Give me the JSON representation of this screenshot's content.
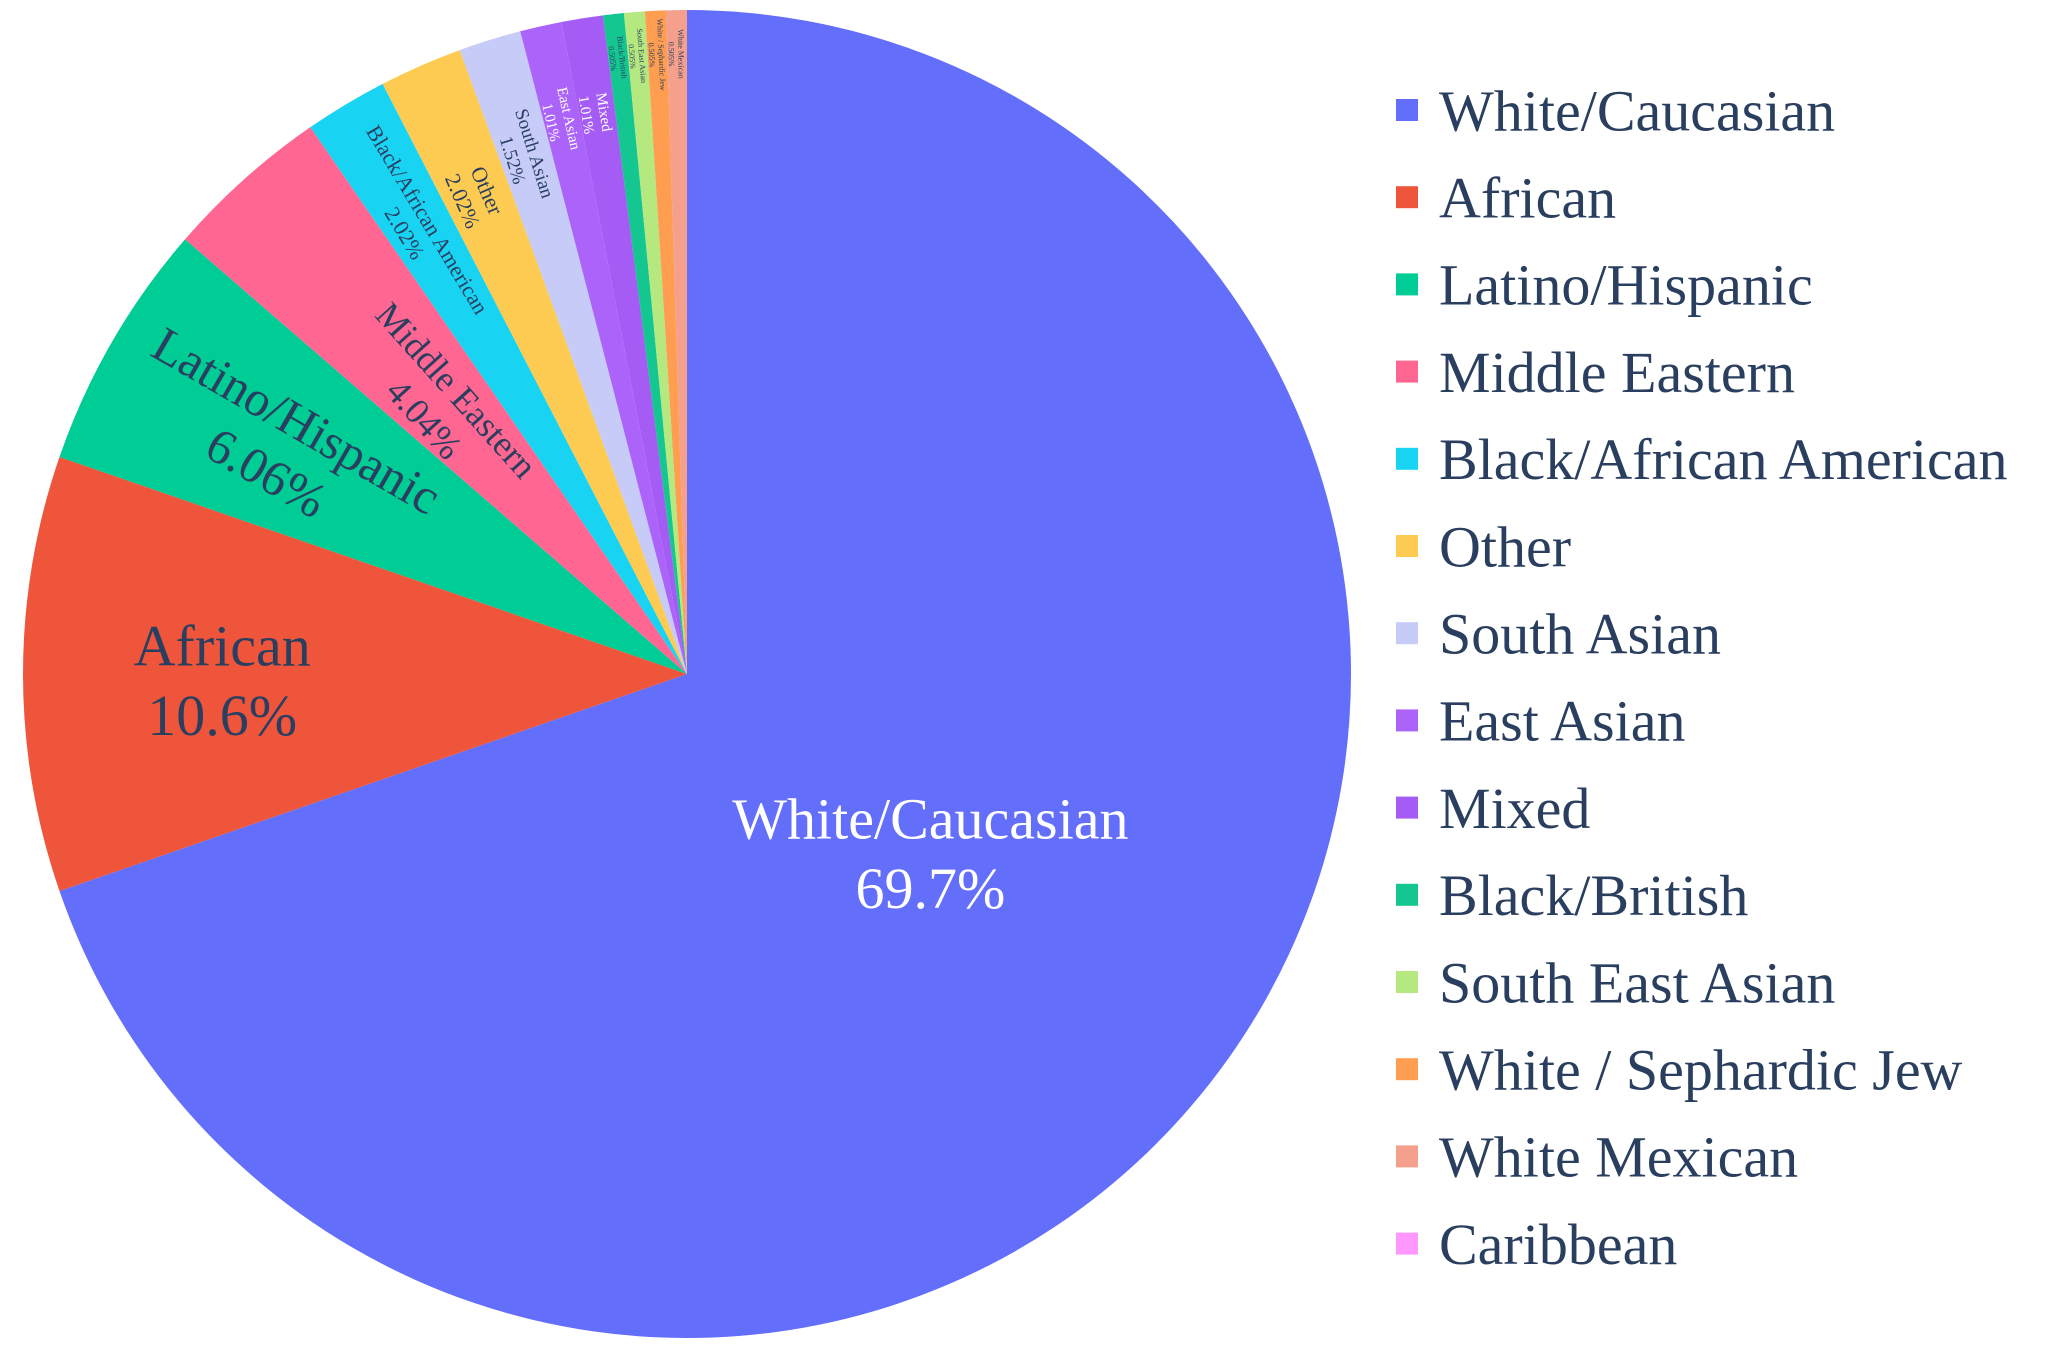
{
  "chart_data": {
    "type": "pie",
    "title": "",
    "labels": [
      "White/Caucasian",
      "African",
      "Latino/Hispanic",
      "Middle Eastern",
      "Black/African American",
      "Other",
      "South Asian",
      "East Asian",
      "Mixed",
      "Black/British",
      "South East Asian",
      "White / Sephardic Jew",
      "White Mexican",
      "Caribbean"
    ],
    "values": [
      69.7,
      10.6,
      6.06,
      4.04,
      2.02,
      2.02,
      1.52,
      1.01,
      1.01,
      0.505,
      0.505,
      0.505,
      0.505,
      0.0
    ],
    "percent_labels": [
      "69.7%",
      "10.6%",
      "6.06%",
      "4.04%",
      "2.02%",
      "2.02%",
      "1.52%",
      "1.01%",
      "1.01%",
      "0.505%",
      "0.505%",
      "0.505%",
      "0.505%",
      ""
    ],
    "colors": [
      "#636EFA",
      "#EF553B",
      "#00CC96",
      "#FF6692",
      "#19D3F3",
      "#FECB52",
      "#C6CBF8",
      "#AB63FA",
      "#A45CF5",
      "#14C690",
      "#B6E880",
      "#FF9D50",
      "#F5A08C",
      "#FF97FF"
    ],
    "text_colors": [
      "#ffffff",
      "#2a3f5f",
      "#2a3f5f",
      "#2a3f5f",
      "#2a3f5f",
      "#2a3f5f",
      "#2a3f5f",
      "#ffffff",
      "#ffffff",
      "#2a3f5f",
      "#2a3f5f",
      "#2a3f5f",
      "#2a3f5f",
      "#2a3f5f"
    ],
    "direction": "clockwise",
    "legend_position": "right",
    "legend_color": "#2a3f5f"
  }
}
